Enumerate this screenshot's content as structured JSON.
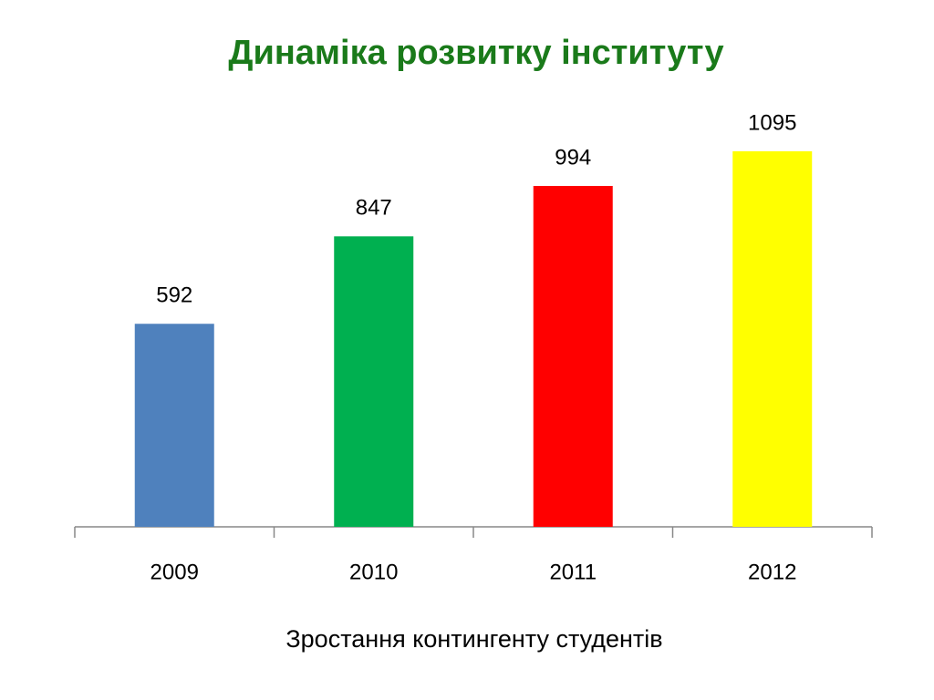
{
  "chart_data": {
    "type": "bar",
    "title": "Динаміка розвитку інституту",
    "x_label": "Зростання контингенту студентів",
    "categories": [
      "2009",
      "2010",
      "2011",
      "2012"
    ],
    "values": [
      592,
      847,
      994,
      1095
    ],
    "colors": [
      "#4f81bd",
      "#00b050",
      "#ff0000",
      "#ffff00"
    ]
  }
}
